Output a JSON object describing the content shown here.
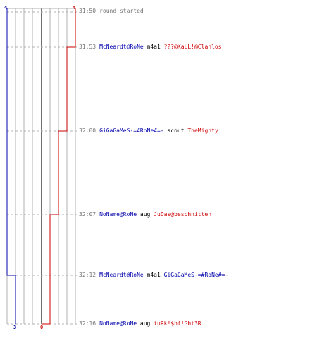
{
  "colors": {
    "team_blue": "#0000aa",
    "team_red": "#cc0000",
    "time": "#777777",
    "grid": "#b0b0b0",
    "baseline": "#333333"
  },
  "timeline": {
    "score_top_left": "4",
    "score_top_right": "4",
    "score_bottom_left": "3",
    "score_bottom_right": "0"
  },
  "events": [
    {
      "time": "31:50",
      "note": "round started"
    },
    {
      "time": "31:53",
      "killer": "McNeardt@RoNe",
      "weapon": "m4a1",
      "victim": "???@KaLL!@Clanlos",
      "victim_team": "red"
    },
    {
      "time": "32:00",
      "killer": "GiGaGaMeS-=#RoNe#=-",
      "weapon": "scout",
      "victim": "TheMighty",
      "victim_team": "red"
    },
    {
      "time": "32:07",
      "killer": "NoName@RoNe",
      "weapon": "aug",
      "victim": "JuDas@beschnitten",
      "victim_team": "red"
    },
    {
      "time": "32:12",
      "killer": "McNeardt@RoNe",
      "weapon": "m4a1",
      "victim": "GiGaGaMeS-=#RoNe#=-",
      "victim_team": "blue"
    },
    {
      "time": "32:16",
      "killer": "NoName@RoNe",
      "weapon": "aug",
      "victim": "tuRk!$hf!Ght3R",
      "victim_team": "red"
    }
  ],
  "score_steps": {
    "blue": [
      4,
      4,
      4,
      4,
      3,
      3
    ],
    "red": [
      4,
      3,
      2,
      1,
      1,
      0
    ]
  }
}
